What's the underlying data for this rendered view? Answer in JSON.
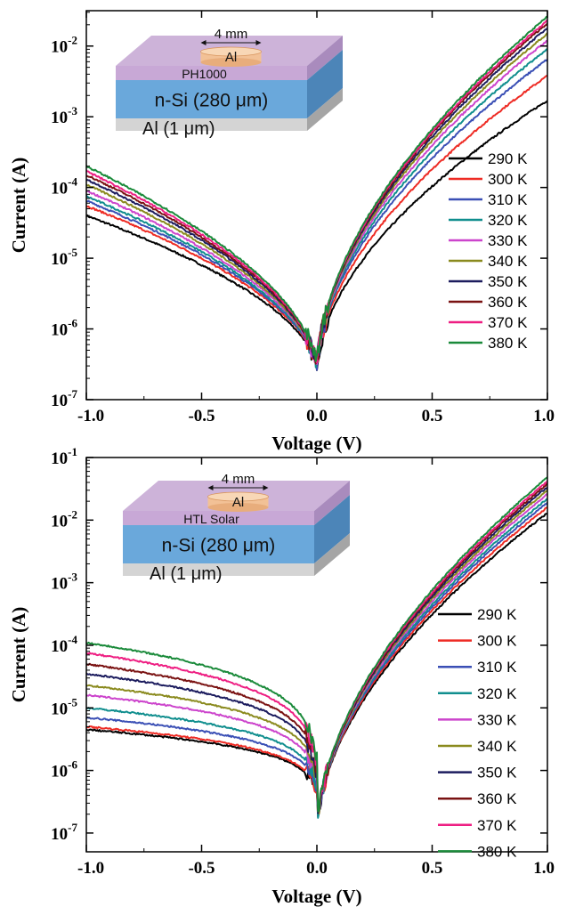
{
  "chart_data": [
    {
      "type": "line",
      "panel": "top",
      "xlabel": "Voltage (V)",
      "ylabel": "Current (A)",
      "xlim": [
        -1.0,
        1.0
      ],
      "ylim_log10": [
        -7,
        -1.5
      ],
      "yscale": "log",
      "x_ticks": [
        -1.0,
        -0.5,
        0.0,
        0.5,
        1.0
      ],
      "x_tick_labels": [
        "-1.0",
        "-0.5",
        "0.0",
        "0.5",
        "1.0"
      ],
      "y_tick_exponents": [
        -7,
        -6,
        -5,
        -4,
        -3,
        -2
      ],
      "y_tick_labels": [
        {
          "base": "10",
          "exp": "-7"
        },
        {
          "base": "10",
          "exp": "-6"
        },
        {
          "base": "10",
          "exp": "-5"
        },
        {
          "base": "10",
          "exp": "-4"
        },
        {
          "base": "10",
          "exp": "-3"
        },
        {
          "base": "10",
          "exp": "-2"
        }
      ],
      "legend_position": "right",
      "inset": {
        "top_label": "4 mm",
        "electrode_label": "Al",
        "layer_label": "PH1000",
        "substrate_label": "n-Si (280 μm)",
        "bottom_label": "Al (1 μm)"
      },
      "series": [
        {
          "name": "290 K",
          "color": "#000000",
          "i_neg1": 4e-05,
          "i_pos1": 0.0017
        },
        {
          "name": "300 K",
          "color": "#ee2b24",
          "i_neg1": 5.5e-05,
          "i_pos1": 0.0038
        },
        {
          "name": "310 K",
          "color": "#3a4fb5",
          "i_neg1": 6.5e-05,
          "i_pos1": 0.0065
        },
        {
          "name": "320 K",
          "color": "#108e8e",
          "i_neg1": 7.5e-05,
          "i_pos1": 0.009
        },
        {
          "name": "330 K",
          "color": "#cc44cc",
          "i_neg1": 9e-05,
          "i_pos1": 0.012
        },
        {
          "name": "340 K",
          "color": "#8a8a1e",
          "i_neg1": 0.00011,
          "i_pos1": 0.015
        },
        {
          "name": "350 K",
          "color": "#1c1c5e",
          "i_neg1": 0.00013,
          "i_pos1": 0.018
        },
        {
          "name": "360 K",
          "color": "#7a1212",
          "i_neg1": 0.00015,
          "i_pos1": 0.021
        },
        {
          "name": "370 K",
          "color": "#ee1e82",
          "i_neg1": 0.00017,
          "i_pos1": 0.023
        },
        {
          "name": "380 K",
          "color": "#1a8a3a",
          "i_neg1": 0.0002,
          "i_pos1": 0.026
        }
      ]
    },
    {
      "type": "line",
      "panel": "bottom",
      "xlabel": "Voltage (V)",
      "ylabel": "Current (A)",
      "xlim": [
        -1.0,
        1.0
      ],
      "ylim_log10": [
        -7.3,
        -1
      ],
      "yscale": "log",
      "x_ticks": [
        -1.0,
        -0.5,
        0.0,
        0.5,
        1.0
      ],
      "x_tick_labels": [
        "-1.0",
        "-0.5",
        "0.0",
        "0.5",
        "1.0"
      ],
      "y_tick_exponents": [
        -7,
        -6,
        -5,
        -4,
        -3,
        -2,
        -1
      ],
      "y_tick_labels": [
        {
          "base": "10",
          "exp": "-7"
        },
        {
          "base": "10",
          "exp": "-6"
        },
        {
          "base": "10",
          "exp": "-5"
        },
        {
          "base": "10",
          "exp": "-4"
        },
        {
          "base": "10",
          "exp": "-3"
        },
        {
          "base": "10",
          "exp": "-2"
        },
        {
          "base": "10",
          "exp": "-1"
        }
      ],
      "legend_position": "right",
      "inset": {
        "top_label": "4 mm",
        "electrode_label": "Al",
        "layer_label": "HTL Solar",
        "substrate_label": "n-Si (280 μm)",
        "bottom_label": "Al (1 μm)"
      },
      "series": [
        {
          "name": "290 K",
          "color": "#000000",
          "i_neg1": 4.5e-06,
          "i_pos1": 0.013
        },
        {
          "name": "300 K",
          "color": "#ee2b24",
          "i_neg1": 5e-06,
          "i_pos1": 0.016
        },
        {
          "name": "310 K",
          "color": "#3a4fb5",
          "i_neg1": 7e-06,
          "i_pos1": 0.019
        },
        {
          "name": "320 K",
          "color": "#108e8e",
          "i_neg1": 1e-05,
          "i_pos1": 0.022
        },
        {
          "name": "330 K",
          "color": "#cc44cc",
          "i_neg1": 1.6e-05,
          "i_pos1": 0.026
        },
        {
          "name": "340 K",
          "color": "#8a8a1e",
          "i_neg1": 2.3e-05,
          "i_pos1": 0.03
        },
        {
          "name": "350 K",
          "color": "#1c1c5e",
          "i_neg1": 3.5e-05,
          "i_pos1": 0.034
        },
        {
          "name": "360 K",
          "color": "#7a1212",
          "i_neg1": 5e-05,
          "i_pos1": 0.038
        },
        {
          "name": "370 K",
          "color": "#ee1e82",
          "i_neg1": 7.5e-05,
          "i_pos1": 0.042
        },
        {
          "name": "380 K",
          "color": "#1a8a3a",
          "i_neg1": 0.00011,
          "i_pos1": 0.048
        }
      ]
    }
  ]
}
